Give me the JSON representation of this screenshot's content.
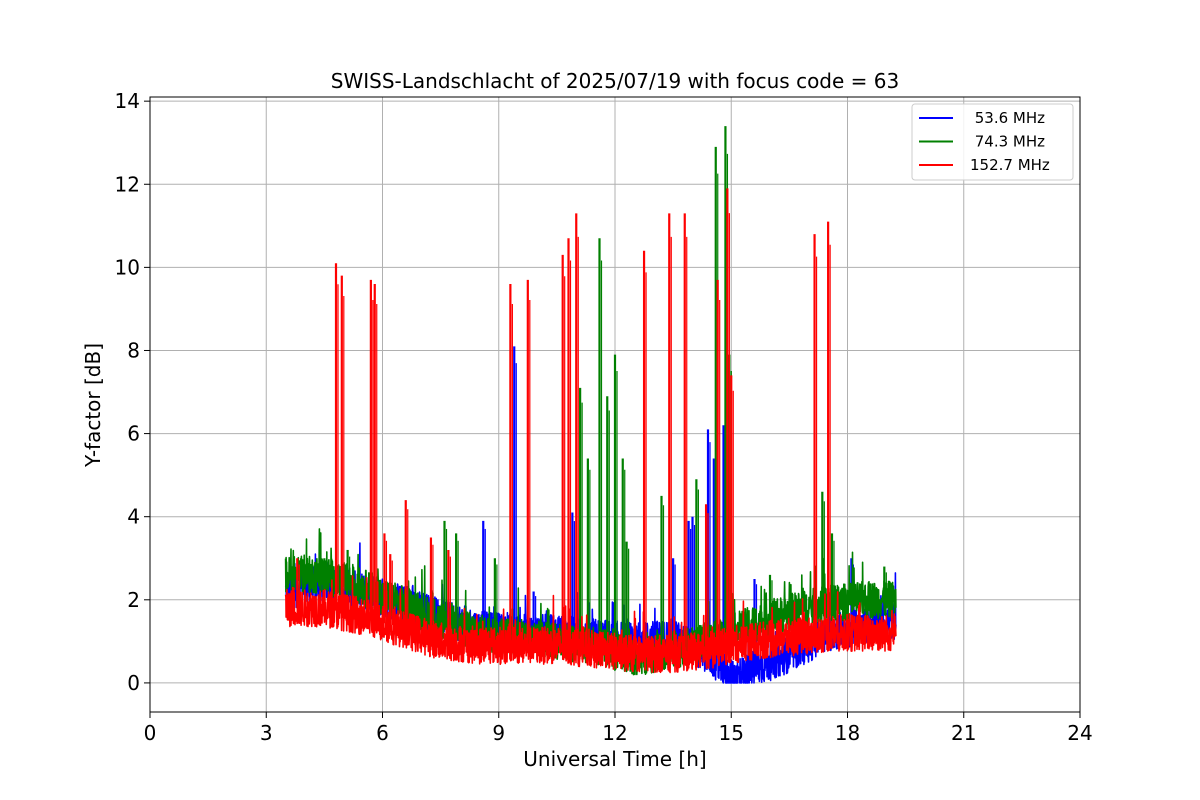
{
  "chart_data": {
    "type": "line",
    "title": "SWISS-Landschlacht of 2025/07/19 with focus code = 63",
    "xlabel": "Universal Time [h]",
    "ylabel": "Y-factor [dB]",
    "xlim": [
      0,
      24
    ],
    "ylim": [
      -0.7,
      14.1
    ],
    "xticks": [
      0,
      3,
      6,
      9,
      12,
      15,
      18,
      21,
      24
    ],
    "yticks": [
      0,
      2,
      4,
      6,
      8,
      10,
      12,
      14
    ],
    "grid": true,
    "legend_position": "top-right",
    "colors": {
      "blue": "#0000ff",
      "green": "#008000",
      "red": "#ff0000"
    },
    "series": [
      {
        "name": " 53.6 MHz",
        "color": "#0000ff",
        "baseline_x": [
          3.5,
          4.5,
          5.5,
          6.5,
          7.5,
          8.5,
          9.5,
          10.5,
          11.5,
          12.5,
          13.5,
          14.5,
          15.0,
          15.5,
          16.5,
          17.5,
          18.5,
          19.25
        ],
        "baseline_y": [
          2.2,
          2.4,
          2.2,
          1.9,
          1.6,
          1.3,
          1.2,
          1.2,
          1.1,
          1.0,
          1.1,
          0.6,
          0.1,
          0.3,
          0.7,
          1.2,
          1.4,
          1.5
        ],
        "spikes": [
          [
            8.6,
            3.9
          ],
          [
            9.4,
            8.1
          ],
          [
            9.9,
            2.2
          ],
          [
            10.9,
            4.1
          ],
          [
            13.5,
            3.0
          ],
          [
            13.9,
            3.9
          ],
          [
            14.0,
            4.0
          ],
          [
            14.4,
            6.1
          ],
          [
            14.55,
            5.4
          ],
          [
            14.8,
            6.2
          ],
          [
            15.6,
            2.5
          ],
          [
            18.1,
            3.0
          ]
        ]
      },
      {
        "name": " 74.3 MHz",
        "color": "#008000",
        "baseline_x": [
          3.5,
          4.5,
          5.5,
          6.5,
          7.5,
          8.5,
          9.5,
          10.5,
          11.5,
          12.5,
          13.5,
          14.5,
          15.0,
          15.5,
          16.5,
          17.5,
          18.5,
          19.25
        ],
        "baseline_y": [
          2.6,
          2.6,
          2.3,
          1.9,
          1.5,
          1.2,
          1.1,
          1.0,
          0.9,
          0.6,
          0.8,
          1.0,
          1.2,
          1.4,
          1.7,
          1.9,
          2.0,
          2.0
        ],
        "spikes": [
          [
            3.9,
            3.0
          ],
          [
            4.5,
            3.0
          ],
          [
            5.1,
            3.2
          ],
          [
            7.6,
            3.9
          ],
          [
            7.9,
            3.6
          ],
          [
            8.9,
            3.0
          ],
          [
            11.1,
            7.1
          ],
          [
            11.3,
            5.4
          ],
          [
            11.6,
            10.7
          ],
          [
            11.8,
            6.9
          ],
          [
            12.0,
            7.9
          ],
          [
            12.2,
            5.4
          ],
          [
            12.3,
            3.4
          ],
          [
            13.2,
            4.5
          ],
          [
            14.1,
            4.9
          ],
          [
            14.6,
            12.9
          ],
          [
            14.85,
            13.4
          ],
          [
            14.95,
            7.9
          ],
          [
            16.0,
            2.6
          ],
          [
            17.35,
            4.6
          ],
          [
            17.6,
            3.6
          ],
          [
            18.95,
            2.8
          ]
        ]
      },
      {
        "name": "152.7 MHz",
        "color": "#ff0000",
        "baseline_x": [
          3.5,
          4.5,
          5.5,
          6.5,
          7.5,
          8.5,
          9.5,
          10.5,
          11.5,
          12.5,
          13.5,
          14.5,
          15.0,
          15.5,
          16.5,
          17.5,
          18.5,
          19.25
        ],
        "baseline_y": [
          1.8,
          1.8,
          1.6,
          1.3,
          1.0,
          0.9,
          0.9,
          0.9,
          0.8,
          0.7,
          0.7,
          0.8,
          0.9,
          1.0,
          1.1,
          1.2,
          1.2,
          1.2
        ],
        "spikes": [
          [
            3.8,
            3.0
          ],
          [
            4.8,
            10.1
          ],
          [
            4.95,
            9.8
          ],
          [
            5.7,
            9.7
          ],
          [
            5.8,
            9.6
          ],
          [
            6.05,
            3.6
          ],
          [
            6.2,
            3.1
          ],
          [
            6.6,
            4.4
          ],
          [
            7.25,
            3.5
          ],
          [
            7.7,
            3.2
          ],
          [
            9.3,
            9.6
          ],
          [
            9.75,
            9.7
          ],
          [
            10.65,
            10.3
          ],
          [
            10.8,
            10.7
          ],
          [
            11.0,
            11.3
          ],
          [
            12.75,
            10.4
          ],
          [
            13.4,
            11.3
          ],
          [
            13.8,
            11.3
          ],
          [
            14.35,
            4.3
          ],
          [
            14.65,
            9.7
          ],
          [
            14.9,
            11.9
          ],
          [
            15.0,
            7.4
          ],
          [
            17.15,
            10.8
          ],
          [
            17.5,
            11.1
          ]
        ]
      }
    ]
  }
}
